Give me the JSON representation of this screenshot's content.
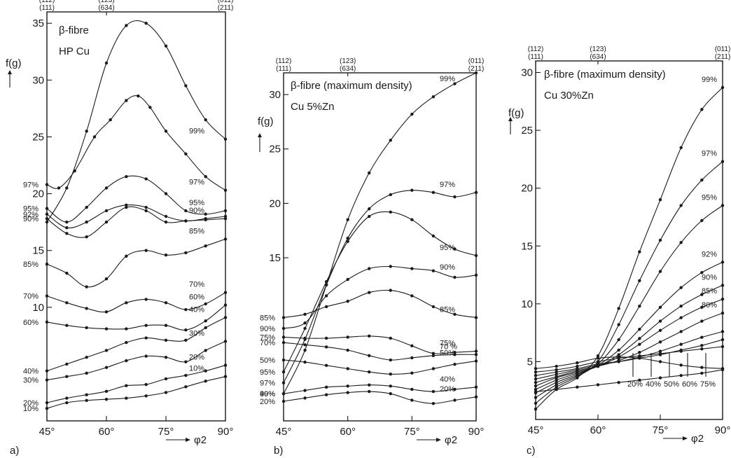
{
  "chart_data": [
    {
      "type": "line",
      "panel": "a)",
      "title": "β-fibre",
      "subtitle": "HP Cu",
      "ylabel": "f(g)",
      "xlabel": "φ2",
      "x_ticks": [
        "45°",
        "60°",
        "75°",
        "90°"
      ],
      "y_ticks": [
        10,
        15,
        20,
        25,
        30,
        35
      ],
      "xlim": [
        45,
        90
      ],
      "ylim": [
        0,
        36
      ],
      "top_labels": [
        {
          "top": "(112)",
          "bottom": "(111)",
          "x": 45
        },
        {
          "top": "(123)",
          "bottom": "(634)",
          "x": 60
        },
        {
          "top": "(011)",
          "bottom": "(211)",
          "x": 90
        }
      ],
      "series": [
        {
          "name": "99%",
          "left_label": "",
          "right_label": "99%",
          "x": [
            45,
            50,
            55,
            60,
            65,
            70,
            75,
            80,
            85,
            90
          ],
          "values": [
            17.5,
            20.5,
            25.5,
            31.5,
            34.8,
            35.0,
            33.0,
            29.5,
            26.5,
            24.8
          ]
        },
        {
          "name": "97%",
          "left_label": "97%",
          "right_label": "97%",
          "x": [
            45,
            48,
            52,
            57,
            61,
            65,
            68,
            71,
            75,
            80,
            85,
            90
          ],
          "values": [
            20.8,
            20.5,
            22.0,
            25.0,
            26.5,
            28.2,
            28.6,
            27.6,
            25.5,
            23.5,
            21.5,
            20.3
          ]
        },
        {
          "name": "95%",
          "left_label": "95%",
          "right_label": "95%",
          "x": [
            45,
            50,
            55,
            60,
            65,
            70,
            75,
            80,
            85,
            90
          ],
          "values": [
            18.7,
            17.5,
            18.8,
            20.5,
            21.5,
            21.3,
            20.0,
            18.5,
            18.2,
            18.5
          ]
        },
        {
          "name": "92%",
          "left_label": "92%",
          "right_label": "",
          "x": [
            45,
            50,
            55,
            60,
            65,
            70,
            75,
            80,
            85,
            90
          ],
          "values": [
            18.2,
            17.0,
            17.5,
            18.5,
            19.0,
            18.8,
            18.0,
            17.6,
            17.8,
            18.0
          ]
        },
        {
          "name": "90%",
          "left_label": "90%",
          "right_label": "90%",
          "x": [
            45,
            50,
            55,
            60,
            65,
            70,
            75,
            80,
            85,
            90
          ],
          "values": [
            17.8,
            16.5,
            16.2,
            17.5,
            18.8,
            18.5,
            17.5,
            17.6,
            17.7,
            17.8
          ]
        },
        {
          "name": "85%",
          "left_label": "85%",
          "right_label": "85%",
          "x": [
            45,
            50,
            55,
            60,
            65,
            70,
            75,
            80,
            85,
            90
          ],
          "values": [
            13.8,
            13.0,
            11.8,
            12.5,
            14.5,
            15.0,
            14.6,
            14.8,
            15.4,
            16.0
          ]
        },
        {
          "name": "70%",
          "left_label": "70%",
          "right_label": "70%",
          "x": [
            45,
            50,
            55,
            60,
            65,
            70,
            75,
            80,
            85,
            90
          ],
          "values": [
            11.0,
            10.4,
            9.9,
            9.6,
            10.4,
            10.7,
            10.4,
            9.8,
            10.3,
            11.3
          ]
        },
        {
          "name": "60%",
          "left_label": "60%",
          "right_label": "60%",
          "x": [
            45,
            50,
            55,
            60,
            65,
            70,
            75,
            80,
            85,
            90
          ],
          "values": [
            8.7,
            8.4,
            8.2,
            8.1,
            8.1,
            8.4,
            8.4,
            8.0,
            8.8,
            10.2
          ]
        },
        {
          "name": "40%",
          "left_label": "40%",
          "right_label": "40%",
          "x": [
            45,
            50,
            55,
            60,
            65,
            70,
            75,
            80,
            85,
            90
          ],
          "values": [
            4.4,
            5.0,
            5.6,
            6.2,
            6.9,
            7.3,
            7.1,
            7.1,
            8.2,
            9.1
          ]
        },
        {
          "name": "30%",
          "left_label": "30%",
          "right_label": "30%",
          "x": [
            45,
            50,
            55,
            60,
            65,
            70,
            75,
            80,
            85,
            90
          ],
          "values": [
            3.6,
            3.9,
            4.2,
            4.7,
            5.3,
            5.7,
            5.6,
            5.2,
            6.2,
            7.0
          ]
        },
        {
          "name": "20%",
          "left_label": "20%",
          "right_label": "20%",
          "x": [
            45,
            50,
            55,
            60,
            65,
            70,
            75,
            80,
            85,
            90
          ],
          "values": [
            1.6,
            2.0,
            2.3,
            2.6,
            3.1,
            3.2,
            3.7,
            4.0,
            4.4,
            4.9
          ]
        },
        {
          "name": "10%",
          "left_label": "10%",
          "right_label": "10%",
          "x": [
            45,
            50,
            55,
            60,
            65,
            70,
            75,
            80,
            85,
            90
          ],
          "values": [
            1.1,
            1.6,
            1.8,
            1.9,
            2.0,
            2.2,
            2.5,
            3.0,
            3.5,
            3.9
          ]
        }
      ]
    },
    {
      "type": "line",
      "panel": "b)",
      "title": "β-fibre (maximum density)",
      "subtitle": "Cu 5%Zn",
      "ylabel": "f(g)",
      "xlabel": "φ2",
      "x_ticks": [
        "45°",
        "60°",
        "75°",
        "90°"
      ],
      "y_ticks": [
        15,
        20,
        25,
        30
      ],
      "xlim": [
        45,
        90
      ],
      "ylim": [
        0,
        32
      ],
      "top_labels": [
        {
          "top": "(112)",
          "bottom": "(111)",
          "x": 45
        },
        {
          "top": "(123)",
          "bottom": "(634)",
          "x": 60
        },
        {
          "top": "(011)",
          "bottom": "(211)",
          "x": 90
        }
      ],
      "series": [
        {
          "name": "99%",
          "left_label": "99%",
          "right_label": "99%",
          "x": [
            45,
            50,
            55,
            60,
            65,
            70,
            75,
            80,
            85,
            90
          ],
          "values": [
            2.5,
            6.5,
            12.5,
            18.5,
            22.8,
            25.8,
            28.2,
            29.8,
            31.0,
            32.0
          ]
        },
        {
          "name": "97%",
          "left_label": "97%",
          "right_label": "97%",
          "x": [
            45,
            50,
            55,
            60,
            65,
            70,
            75,
            80,
            85,
            90
          ],
          "values": [
            3.5,
            7.5,
            12.5,
            16.8,
            19.5,
            20.8,
            21.2,
            21.0,
            20.6,
            21.0
          ]
        },
        {
          "name": "95%",
          "left_label": "95%",
          "right_label": "95%",
          "x": [
            45,
            50,
            55,
            60,
            65,
            70,
            75,
            80,
            85,
            90
          ],
          "values": [
            4.5,
            8.5,
            12.8,
            16.5,
            18.8,
            19.2,
            18.5,
            17.0,
            15.8,
            15.2
          ]
        },
        {
          "name": "90%",
          "left_label": "90%",
          "right_label": "90%",
          "x": [
            45,
            50,
            55,
            60,
            65,
            70,
            75,
            80,
            85,
            90
          ],
          "values": [
            8.5,
            9.0,
            11.5,
            13.0,
            14.0,
            14.2,
            14.0,
            13.8,
            13.2,
            13.4
          ]
        },
        {
          "name": "85%",
          "left_label": "85%",
          "right_label": "85%",
          "x": [
            45,
            50,
            55,
            60,
            65,
            70,
            75,
            80,
            85,
            90
          ],
          "values": [
            9.5,
            9.8,
            10.5,
            11.0,
            11.8,
            12.0,
            11.5,
            10.5,
            9.8,
            9.5
          ]
        },
        {
          "name": "75%",
          "left_label": "75%",
          "right_label": "75%",
          "x": [
            45,
            50,
            55,
            60,
            65,
            70,
            75,
            80,
            85,
            90
          ],
          "values": [
            7.7,
            7.6,
            7.6,
            7.7,
            7.8,
            7.6,
            6.9,
            6.2,
            6.3,
            6.4
          ]
        },
        {
          "name": "70%",
          "left_label": "70%",
          "right_label": "70 %",
          "x": [
            45,
            50,
            55,
            60,
            65,
            70,
            75,
            80,
            85,
            90
          ],
          "values": [
            7.2,
            7.0,
            6.8,
            6.5,
            6.0,
            5.6,
            5.8,
            6.0,
            6.1,
            6.1
          ]
        },
        {
          "name": "50%",
          "left_label": "50%",
          "right_label": "50%",
          "x": [
            45,
            50,
            55,
            60,
            65,
            70,
            75,
            80,
            85,
            90
          ],
          "values": [
            5.6,
            5.4,
            5.1,
            4.8,
            4.5,
            4.3,
            4.4,
            4.8,
            5.2,
            5.5
          ]
        },
        {
          "name": "40%",
          "left_label": "40%",
          "right_label": "40%",
          "x": [
            45,
            50,
            55,
            60,
            65,
            70,
            75,
            80,
            85,
            90
          ],
          "values": [
            2.5,
            2.8,
            3.1,
            3.2,
            3.3,
            3.2,
            2.9,
            2.7,
            2.9,
            3.1
          ]
        },
        {
          "name": "20%",
          "left_label": "20%",
          "right_label": "20%",
          "x": [
            45,
            50,
            55,
            60,
            65,
            70,
            75,
            80,
            85,
            90
          ],
          "values": [
            1.8,
            2.1,
            2.4,
            2.6,
            2.7,
            2.5,
            1.9,
            1.6,
            1.9,
            2.2
          ]
        }
      ]
    },
    {
      "type": "line",
      "panel": "c)",
      "title": "β-fibre (maximum density)",
      "subtitle": "Cu 30%Zn",
      "ylabel": "f(g)",
      "xlabel": "φ2",
      "x_ticks": [
        "45°",
        "60°",
        "75°",
        "90°"
      ],
      "y_ticks": [
        5,
        10,
        15,
        20,
        25,
        30
      ],
      "xlim": [
        45,
        90
      ],
      "ylim": [
        0,
        31
      ],
      "top_labels": [
        {
          "top": "(112)",
          "bottom": "(111)",
          "x": 45
        },
        {
          "top": "(123)",
          "bottom": "(634)",
          "x": 60
        },
        {
          "top": "(011)",
          "bottom": "(211)",
          "x": 90
        }
      ],
      "series": [
        {
          "name": "99%",
          "right_label": "99%",
          "x": [
            45,
            50,
            55,
            60,
            65,
            70,
            75,
            80,
            85,
            90
          ],
          "values": [
            0.9,
            2.6,
            3.6,
            5.5,
            9.6,
            14.5,
            19.0,
            23.5,
            26.8,
            28.7
          ]
        },
        {
          "name": "97%",
          "right_label": "97%",
          "x": [
            45,
            50,
            55,
            60,
            65,
            70,
            75,
            80,
            85,
            90
          ],
          "values": [
            1.4,
            2.8,
            3.7,
            5.0,
            8.2,
            12.0,
            15.5,
            18.5,
            20.7,
            22.3
          ]
        },
        {
          "name": "95%",
          "right_label": "95%",
          "x": [
            45,
            50,
            55,
            60,
            65,
            70,
            75,
            80,
            85,
            90
          ],
          "values": [
            1.9,
            3.0,
            3.8,
            4.8,
            6.9,
            9.8,
            12.8,
            15.3,
            17.2,
            18.5
          ]
        },
        {
          "name": "92%",
          "right_label": "92%",
          "x": [
            45,
            50,
            55,
            60,
            65,
            70,
            75,
            80,
            85,
            90
          ],
          "values": [
            2.3,
            3.2,
            3.9,
            4.7,
            6.0,
            7.8,
            9.7,
            11.4,
            12.7,
            13.6
          ]
        },
        {
          "name": "90%",
          "right_label": "90%",
          "x": [
            45,
            50,
            55,
            60,
            65,
            70,
            75,
            80,
            85,
            90
          ],
          "values": [
            2.6,
            3.4,
            4.0,
            4.6,
            5.6,
            7.0,
            8.5,
            9.8,
            10.8,
            11.6
          ]
        },
        {
          "name": "85%",
          "right_label": "85%",
          "x": [
            45,
            50,
            55,
            60,
            65,
            70,
            75,
            80,
            85,
            90
          ],
          "values": [
            2.9,
            3.6,
            4.1,
            4.6,
            5.4,
            6.5,
            7.7,
            8.8,
            9.7,
            10.4
          ]
        },
        {
          "name": "80%",
          "right_label": "80%",
          "x": [
            45,
            50,
            55,
            60,
            65,
            70,
            75,
            80,
            85,
            90
          ],
          "values": [
            3.2,
            3.7,
            4.2,
            4.6,
            5.1,
            5.8,
            6.7,
            7.6,
            8.5,
            9.2
          ]
        },
        {
          "name": "75%",
          "bottom_label": "75%",
          "x": [
            45,
            50,
            55,
            60,
            65,
            70,
            75,
            80,
            85,
            90
          ],
          "values": [
            3.5,
            3.9,
            4.3,
            4.7,
            5.0,
            5.4,
            5.9,
            6.5,
            7.1,
            7.6
          ]
        },
        {
          "name": "60%",
          "bottom_label": "60%",
          "x": [
            45,
            50,
            55,
            60,
            65,
            70,
            75,
            80,
            85,
            90
          ],
          "values": [
            3.8,
            4.1,
            4.4,
            4.8,
            5.0,
            5.3,
            5.6,
            6.0,
            6.4,
            6.9
          ]
        },
        {
          "name": "50%",
          "bottom_label": "50%",
          "x": [
            45,
            50,
            55,
            60,
            65,
            70,
            75,
            80,
            85,
            90
          ],
          "values": [
            4.1,
            4.3,
            4.6,
            5.0,
            5.3,
            5.5,
            5.7,
            5.9,
            6.1,
            6.3
          ]
        },
        {
          "name": "40%",
          "bottom_label": "40%",
          "x": [
            45,
            50,
            55,
            60,
            65,
            70,
            75,
            80,
            85,
            90
          ],
          "values": [
            4.4,
            4.6,
            4.9,
            5.3,
            5.4,
            5.3,
            5.0,
            4.7,
            4.5,
            4.4
          ]
        },
        {
          "name": "20%",
          "bottom_label": "20%",
          "x": [
            45,
            50,
            55,
            60,
            65,
            70,
            75,
            80,
            85,
            90
          ],
          "values": [
            2.4,
            2.6,
            2.8,
            3.0,
            3.2,
            3.4,
            3.6,
            3.8,
            4.0,
            4.3
          ]
        }
      ]
    }
  ]
}
